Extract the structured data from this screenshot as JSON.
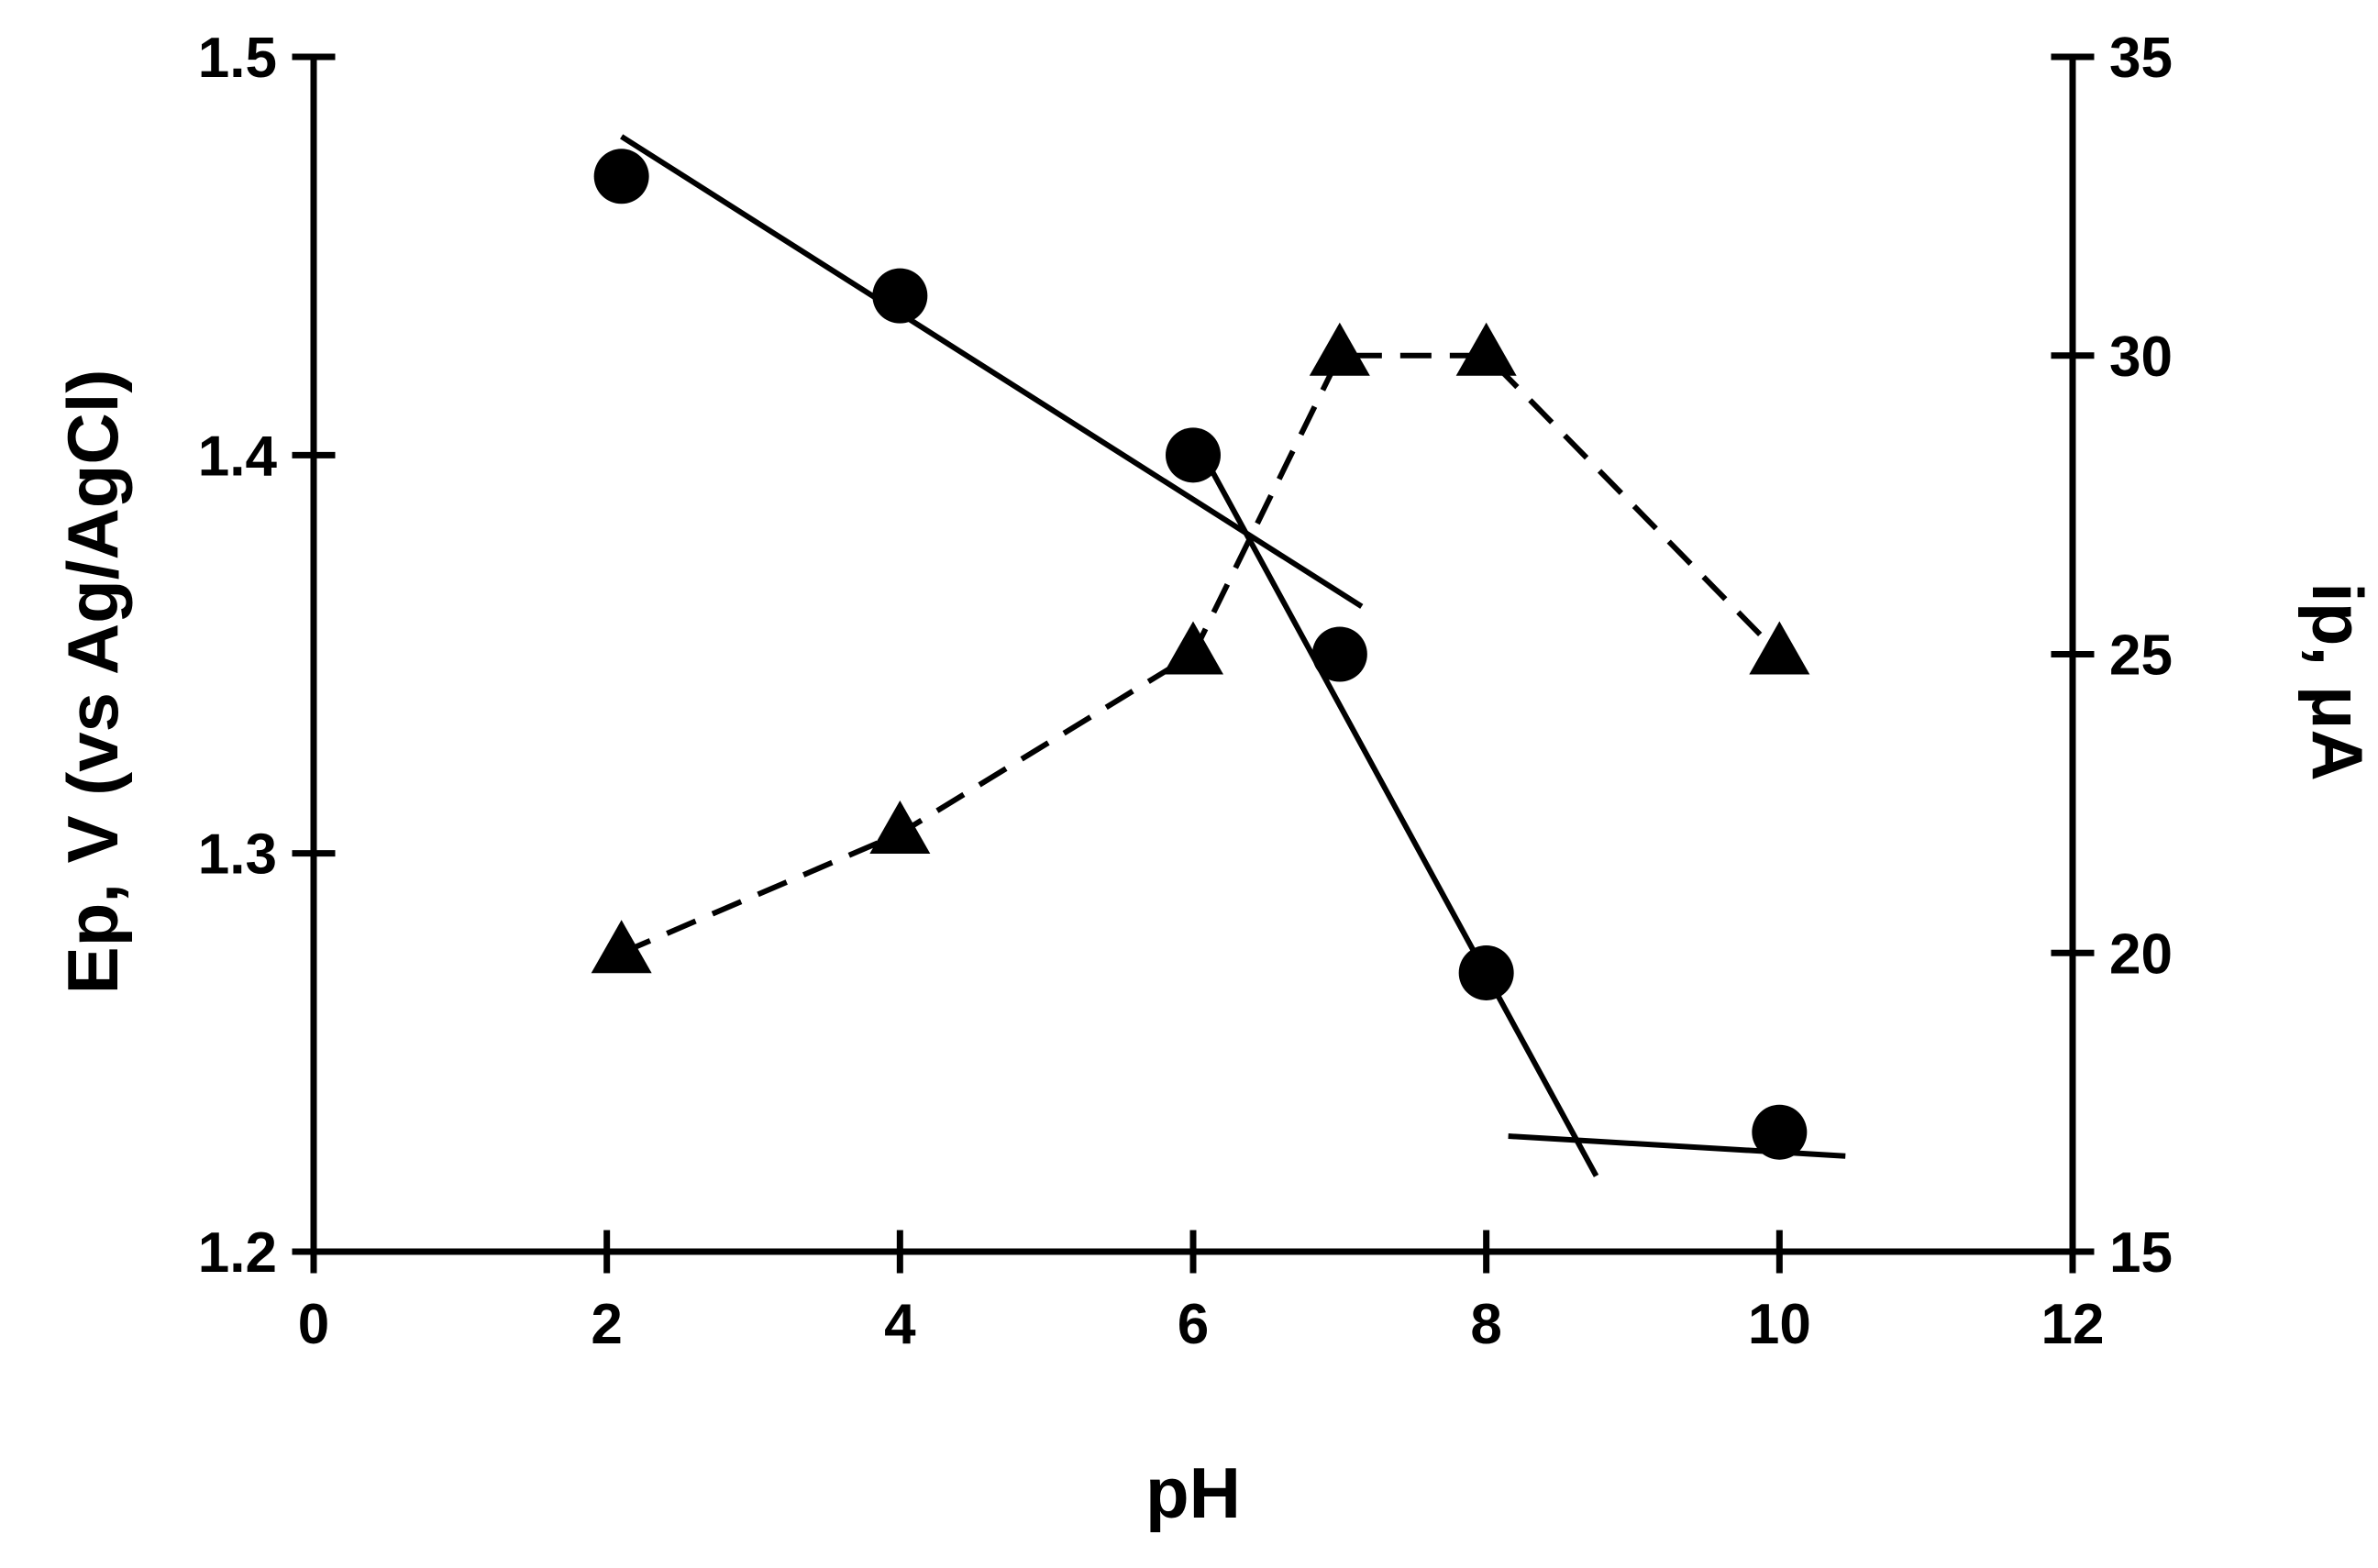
{
  "chart_data": {
    "type": "scatter",
    "xlabel": "pH",
    "ylabel_left": "Ep, V (vs Ag/AgCl)",
    "ylabel_right": "ip, μA",
    "xlim": [
      0,
      12
    ],
    "ylim_left": [
      1.2,
      1.5
    ],
    "ylim_right": [
      15,
      35
    ],
    "x_ticks": [
      "0",
      "2",
      "4",
      "6",
      "8",
      "10",
      "12"
    ],
    "y_left_ticks": [
      "1.2",
      "1.3",
      "1.4",
      "1.5"
    ],
    "y_right_ticks": [
      "15",
      "20",
      "25",
      "30",
      "35"
    ],
    "grid": false,
    "legend": "none",
    "series": [
      {
        "axis": "left",
        "marker": "circle",
        "line": "none",
        "x": [
          2.1,
          4,
          6,
          7,
          8,
          10
        ],
        "y": [
          1.47,
          1.44,
          1.4,
          1.35,
          1.27,
          1.23
        ]
      },
      {
        "axis": "right",
        "marker": "triangle",
        "line": "dashed",
        "x": [
          2.1,
          4,
          6,
          7,
          8,
          10
        ],
        "y": [
          20,
          22,
          25,
          30,
          30,
          25
        ]
      }
    ],
    "fit_lines": [
      {
        "axis": "left",
        "style": "solid",
        "x": [
          2.1,
          7.15
        ],
        "y": [
          1.48,
          1.362
        ]
      },
      {
        "axis": "left",
        "style": "solid",
        "x": [
          6.1,
          8.75
        ],
        "y": [
          1.398,
          1.219
        ]
      },
      {
        "axis": "left",
        "style": "solid",
        "x": [
          8.15,
          10.45
        ],
        "y": [
          1.229,
          1.224
        ]
      }
    ],
    "colors": {
      "marks": "#000000",
      "background": "#ffffff"
    }
  }
}
